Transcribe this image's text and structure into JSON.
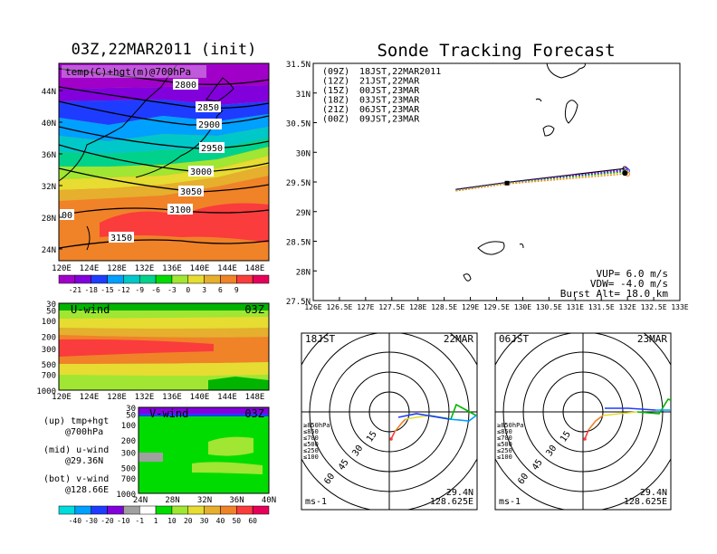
{
  "left": {
    "title": "03Z,22MAR2011 (init)",
    "top_panel": {
      "label": "temp(C)+hgt(m)@700hPa",
      "lon_ticks": [
        "120E",
        "124E",
        "128E",
        "132E",
        "136E",
        "140E",
        "144E",
        "148E"
      ],
      "lat_ticks": [
        "44N",
        "40N",
        "36N",
        "32N",
        "28N",
        "24N"
      ],
      "contour_labels": [
        "2800",
        "2850",
        "2900",
        "2950",
        "3000",
        "3050",
        "3100",
        "3150",
        "00"
      ],
      "colorbar_ticks": [
        "-21",
        "-18",
        "-15",
        "-12",
        "-9",
        "-6",
        "-3",
        "0",
        "3",
        "6",
        "9"
      ],
      "colorbar_colors": [
        "#a000c8",
        "#8200dc",
        "#1e3cff",
        "#00a0ff",
        "#00c8c8",
        "#00d28c",
        "#00dc00",
        "#a0e632",
        "#e6dc32",
        "#e6af2d",
        "#f08228",
        "#fa3c3c",
        "#e6005a"
      ]
    },
    "mid_panel": {
      "label": "U-wind",
      "time": "03Z",
      "p_ticks": [
        "30",
        "50",
        "100",
        "200",
        "300",
        "500",
        "700",
        "1000"
      ],
      "lon_ticks": [
        "120E",
        "124E",
        "128E",
        "132E",
        "136E",
        "140E",
        "144E",
        "148E"
      ]
    },
    "bot_panel": {
      "label": "V-wind",
      "time": "03Z",
      "p_ticks": [
        "30",
        "50",
        "100",
        "200",
        "300",
        "500",
        "700",
        "1000"
      ],
      "lat_ticks": [
        "24N",
        "28N",
        "32N",
        "36N",
        "40N"
      ],
      "colorbar_ticks": [
        "-40",
        "-30",
        "-20",
        "-10",
        "-1",
        "1",
        "10",
        "20",
        "30",
        "40",
        "50",
        "60"
      ],
      "colorbar_colors": [
        "#00dcdc",
        "#00a0ff",
        "#1e3cff",
        "#8200dc",
        "#a0a0a0",
        "#ffffff",
        "#00dc00",
        "#a0e632",
        "#e6dc32",
        "#e6af2d",
        "#f08228",
        "#fa3c3c",
        "#e6005a"
      ]
    },
    "legend": {
      "up_1": "(up) tmp+hgt",
      "up_2": "@700hPa",
      "mid_1": "(mid) u-wind",
      "mid_2": "@29.36N",
      "bot_1": "(bot) v-wind",
      "bot_2": "@128.66E"
    }
  },
  "right": {
    "title": "Sonde Tracking Forecast",
    "track_map": {
      "lon_ticks": [
        "126E",
        "126.5E",
        "127E",
        "127.5E",
        "128E",
        "128.5E",
        "129E",
        "129.5E",
        "130E",
        "130.5E",
        "131E",
        "131.5E",
        "132E",
        "132.5E",
        "133E"
      ],
      "lat_ticks": [
        "31.5N",
        "31N",
        "30.5N",
        "30N",
        "29.5N",
        "29N",
        "28.5N",
        "28N",
        "27.5N"
      ],
      "forecasts": [
        {
          "utc": "(09Z)",
          "jst": "18JST,22MAR2011",
          "color": "#000000"
        },
        {
          "utc": "(12Z)",
          "jst": "21JST,22MAR",
          "color": "#a000c8"
        },
        {
          "utc": "(15Z)",
          "jst": "00JST,23MAR",
          "color": "#1e3cff"
        },
        {
          "utc": "(18Z)",
          "jst": "03JST,23MAR",
          "color": "#00b400"
        },
        {
          "utc": "(21Z)",
          "jst": "06JST,23MAR",
          "color": "#e6dc32"
        },
        {
          "utc": "(00Z)",
          "jst": "09JST,23MAR",
          "color": "#f08228"
        }
      ],
      "vup": "VUP=  6.0  m/s",
      "vdw": "VDW= -4.0  m/s",
      "burst": "Burst Alt= 18.0  km",
      "launch": {
        "lon": 129.7,
        "lat": 29.48
      },
      "track_end": {
        "lon": 131.95,
        "lat": 29.68
      }
    },
    "hodo_left": {
      "time": "18JST",
      "date": "22MAR",
      "ring_labels": [
        "15",
        "30",
        "45",
        "60"
      ],
      "levels": [
        "≥850hPa",
        "≤850",
        "≤700",
        "≤500",
        "≤250",
        "≤100"
      ],
      "level_colors": [
        "#fa3c3c",
        "#f08228",
        "#e6dc32",
        "#00b400",
        "#00a0ff",
        "#1e3cff"
      ],
      "unit": "ms-1",
      "lat": "29.4N",
      "lon": "128.625E"
    },
    "hodo_right": {
      "time": "06JST",
      "date": "23MAR",
      "ring_labels": [
        "15",
        "30",
        "45",
        "60"
      ],
      "levels": [
        "≥850hPa",
        "≤850",
        "≤700",
        "≤500",
        "≤250",
        "≤100"
      ],
      "level_colors": [
        "#fa3c3c",
        "#f08228",
        "#e6dc32",
        "#00b400",
        "#00a0ff",
        "#1e3cff"
      ],
      "unit": "ms-1",
      "lat": "29.4N",
      "lon": "128.625E"
    }
  }
}
